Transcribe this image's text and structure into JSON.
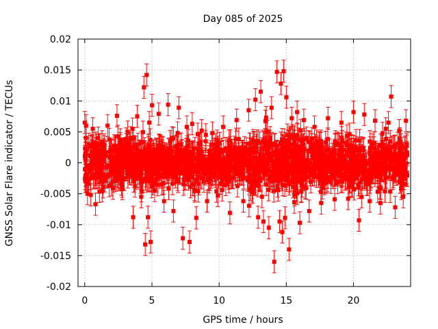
{
  "chart_data": {
    "type": "scatter",
    "title": "Day 085 of 2025",
    "xlabel": "GPS time / hours",
    "ylabel": "GNSS Solar Flare indicator / TECUs",
    "xlim": [
      -0.5,
      24.25
    ],
    "ylim": [
      -0.02,
      0.02
    ],
    "x_ticks": [
      "0",
      "5",
      "10",
      "15",
      "20"
    ],
    "x_tick_values": [
      0,
      5,
      10,
      15,
      20
    ],
    "y_ticks": [
      "0.02",
      "0.015",
      "0.01",
      "0.005",
      "0",
      "-0.005",
      "-0.01",
      "-0.015",
      "-0.02"
    ],
    "y_tick_values": [
      0.02,
      0.015,
      0.01,
      0.005,
      0,
      -0.005,
      -0.01,
      -0.015,
      -0.02
    ],
    "grid": true,
    "legend": "none",
    "marker": "square",
    "error_bars": true,
    "series_color": "#ff0000",
    "series": [
      {
        "x": [
          0.0,
          0.05,
          0.1,
          0.2,
          0.3,
          0.45,
          0.6,
          0.8,
          1.0,
          1.3,
          1.7,
          2.0,
          2.4,
          2.8,
          3.2,
          3.6,
          3.9,
          4.2,
          4.4,
          4.5,
          4.6,
          4.7,
          4.8,
          4.9,
          5.0,
          5.2,
          5.5,
          5.9,
          6.2,
          6.6,
          7.0,
          7.3,
          7.6,
          7.8,
          8.0,
          8.3,
          8.7,
          9.1,
          9.5,
          9.9,
          10.3,
          10.8,
          11.3,
          11.8,
          12.2,
          12.5,
          12.7,
          12.9,
          13.1,
          13.3,
          13.5,
          13.7,
          13.9,
          14.1,
          14.3,
          14.5,
          14.6,
          14.7,
          14.8,
          14.9,
          15.0,
          15.2,
          15.4,
          15.6,
          15.8,
          16.0,
          16.3,
          16.7,
          17.1,
          17.6,
          18.1,
          18.6,
          19.1,
          19.6,
          20.0,
          20.4,
          20.8,
          21.2,
          21.6,
          22.0,
          22.4,
          22.6,
          22.8,
          23.1,
          23.4,
          23.7,
          23.9
        ],
        "y": [
          0.0065,
          -0.003,
          0.006,
          -0.005,
          0.003,
          -0.0052,
          0.0055,
          -0.0067,
          0.004,
          -0.0045,
          0.006,
          -0.0035,
          0.0076,
          -0.0042,
          0.005,
          -0.0088,
          0.0075,
          -0.0055,
          0.0122,
          -0.0132,
          0.0142,
          -0.0088,
          0.0065,
          -0.0128,
          0.0093,
          -0.0045,
          0.0079,
          -0.0062,
          0.0094,
          -0.0078,
          0.0089,
          -0.0122,
          0.0058,
          -0.0128,
          0.0063,
          -0.0089,
          0.0052,
          -0.0062,
          0.0048,
          -0.0053,
          0.0058,
          -0.0081,
          0.0069,
          -0.0062,
          0.0085,
          -0.0048,
          0.0102,
          -0.0088,
          0.0115,
          -0.0095,
          0.0073,
          -0.0105,
          0.0089,
          -0.016,
          0.0147,
          -0.0095,
          0.0128,
          -0.0112,
          0.0148,
          -0.0089,
          0.0106,
          -0.014,
          0.0072,
          -0.0052,
          0.0082,
          -0.0097,
          0.0069,
          -0.0078,
          0.0058,
          -0.0065,
          0.0072,
          -0.0059,
          0.0065,
          -0.0058,
          0.0082,
          -0.0093,
          0.0078,
          -0.0062,
          0.0068,
          -0.0065,
          0.0055,
          0.0065,
          0.0107,
          -0.0072,
          0.0052,
          -0.0055,
          0.0068
        ]
      }
    ]
  }
}
